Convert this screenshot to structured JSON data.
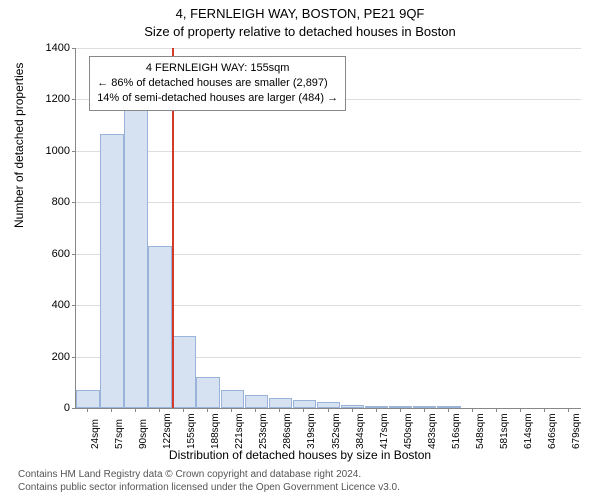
{
  "title_line1": "4, FERNLEIGH WAY, BOSTON, PE21 9QF",
  "title_line2": "Size of property relative to detached houses in Boston",
  "y_axis_label": "Number of detached properties",
  "x_axis_label": "Distribution of detached houses by size in Boston",
  "chart": {
    "type": "histogram",
    "ylim": [
      0,
      1400
    ],
    "ytick_step": 200,
    "yticks": [
      0,
      200,
      400,
      600,
      800,
      1000,
      1200,
      1400
    ],
    "bar_fill": "#d6e1f1",
    "bar_stroke": "#9ab3d8",
    "grid_color": "#dddddd",
    "axis_color": "#888888",
    "marker_color": "#d43a2a",
    "marker_x_index": 4,
    "background": "#ffffff",
    "categories": [
      "24sqm",
      "57sqm",
      "90sqm",
      "122sqm",
      "155sqm",
      "188sqm",
      "221sqm",
      "253sqm",
      "286sqm",
      "319sqm",
      "352sqm",
      "384sqm",
      "417sqm",
      "450sqm",
      "483sqm",
      "516sqm",
      "548sqm",
      "581sqm",
      "614sqm",
      "646sqm",
      "679sqm"
    ],
    "values": [
      70,
      1065,
      1170,
      630,
      280,
      120,
      70,
      50,
      40,
      30,
      25,
      12,
      5,
      3,
      2,
      2,
      1,
      1,
      1,
      0,
      0
    ]
  },
  "annotation": {
    "line1": "4 FERNLEIGH WAY: 155sqm",
    "line2": "← 86% of detached houses are smaller (2,897)",
    "line3": "14% of semi-detached houses are larger (484) →"
  },
  "caption_line1": "Contains HM Land Registry data © Crown copyright and database right 2024.",
  "caption_line2": "Contains public sector information licensed under the Open Government Licence v3.0."
}
